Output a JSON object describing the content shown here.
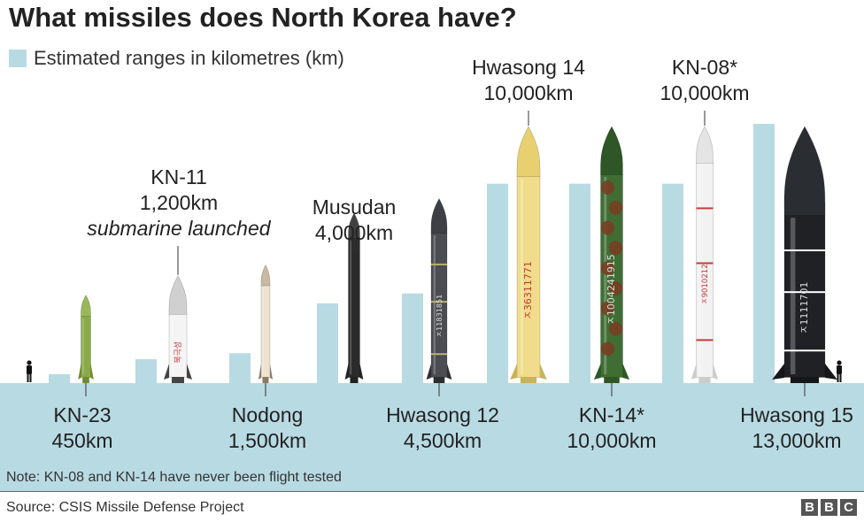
{
  "title": "What missiles does North Korea have?",
  "legend": {
    "label": "Estimated ranges in kilometres (km)"
  },
  "note": "Note: KN-08 and KN-14 have never been flight tested",
  "source": "Source: CSIS Missile Defense Project",
  "logo_letters": [
    "B",
    "B",
    "C"
  ],
  "colors": {
    "bar": "#b8dae3",
    "ground": "#b8dae3",
    "text": "#222222"
  },
  "chart_data": {
    "type": "bar",
    "title": "What missiles does North Korea have?",
    "units": "km",
    "categories": [
      "KN-23",
      "KN-11",
      "Nodong",
      "Musudan",
      "Hwasong 12",
      "Hwasong 14",
      "KN-14*",
      "KN-08*",
      "Hwasong 15"
    ],
    "values": [
      450,
      1200,
      1500,
      4000,
      4500,
      10000,
      10000,
      10000,
      13000
    ],
    "labels": [
      {
        "name": "KN-23",
        "range": "450km",
        "sub": "",
        "position": "below"
      },
      {
        "name": "KN-11",
        "range": "1,200km",
        "sub": "submarine launched",
        "position": "above"
      },
      {
        "name": "Nodong",
        "range": "1,500km",
        "sub": "",
        "position": "below"
      },
      {
        "name": "Musudan",
        "range": "4,000km",
        "sub": "",
        "position": "above"
      },
      {
        "name": "Hwasong 12",
        "range": "4,500km",
        "sub": "",
        "position": "below"
      },
      {
        "name": "Hwasong 14",
        "range": "10,000km",
        "sub": "",
        "position": "above"
      },
      {
        "name": "KN-14*",
        "range": "10,000km",
        "sub": "",
        "position": "below"
      },
      {
        "name": "KN-08*",
        "range": "10,000km",
        "sub": "",
        "position": "above"
      },
      {
        "name": "Hwasong 15",
        "range": "13,000km",
        "sub": "",
        "position": "below"
      }
    ],
    "missile_markings": [
      "",
      "북극성",
      "",
      "",
      "ㅈ11831851",
      "ㅈ36311771",
      "ㅈ1004241915",
      "ㅈ9010212",
      "ㅈ1111701"
    ],
    "legend": "Estimated ranges in kilometres (km)",
    "grid": false
  }
}
